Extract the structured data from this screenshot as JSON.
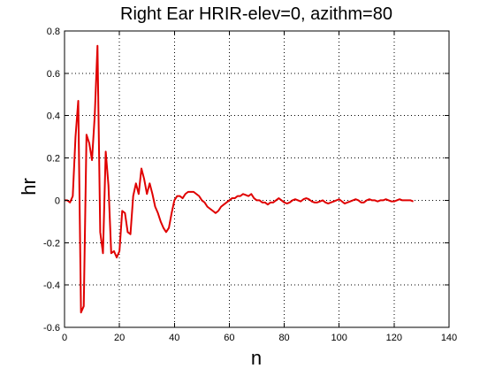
{
  "chart_data": {
    "type": "line",
    "title": "Right Ear HRIR-elev=0, azithm=80",
    "xlabel": "n",
    "ylabel": "hr",
    "xlim": [
      0,
      140
    ],
    "ylim": [
      -0.6,
      0.8
    ],
    "xticks": [
      0,
      20,
      40,
      60,
      80,
      100,
      120,
      140
    ],
    "yticks": [
      -0.6,
      -0.4,
      -0.2,
      0,
      0.2,
      0.4,
      0.6,
      0.8
    ],
    "xtick_labels": [
      "0",
      "20",
      "40",
      "60",
      "80",
      "100",
      "120",
      "140"
    ],
    "ytick_labels": [
      "-0.6",
      "-0.4",
      "-0.2",
      "0",
      "0.2",
      "0.4",
      "0.6",
      "0.8"
    ],
    "grid": true,
    "series": [
      {
        "color": "#e00000",
        "x": [
          0,
          1,
          2,
          3,
          4,
          5,
          6,
          7,
          8,
          9,
          10,
          11,
          12,
          13,
          14,
          15,
          16,
          17,
          18,
          19,
          20,
          21,
          22,
          23,
          24,
          25,
          26,
          27,
          28,
          29,
          30,
          31,
          32,
          33,
          34,
          35,
          36,
          37,
          38,
          39,
          40,
          41,
          42,
          43,
          44,
          45,
          46,
          47,
          48,
          49,
          50,
          51,
          52,
          53,
          54,
          55,
          56,
          57,
          58,
          59,
          60,
          61,
          62,
          63,
          64,
          65,
          66,
          67,
          68,
          69,
          70,
          71,
          72,
          73,
          74,
          75,
          76,
          77,
          78,
          79,
          80,
          81,
          82,
          83,
          84,
          85,
          86,
          87,
          88,
          89,
          90,
          91,
          92,
          93,
          94,
          95,
          96,
          97,
          98,
          99,
          100,
          101,
          102,
          103,
          104,
          105,
          106,
          107,
          108,
          109,
          110,
          111,
          112,
          113,
          114,
          115,
          116,
          117,
          118,
          119,
          120,
          121,
          122,
          123,
          124,
          125,
          126,
          127
        ],
        "y": [
          0.0,
          0.0,
          -0.01,
          0.02,
          0.3,
          0.47,
          -0.53,
          -0.5,
          0.31,
          0.27,
          0.19,
          0.4,
          0.73,
          -0.15,
          -0.25,
          0.23,
          0.07,
          -0.25,
          -0.24,
          -0.27,
          -0.24,
          -0.05,
          -0.06,
          -0.15,
          -0.16,
          0.02,
          0.08,
          0.03,
          0.15,
          0.1,
          0.03,
          0.08,
          0.03,
          -0.03,
          -0.06,
          -0.1,
          -0.13,
          -0.15,
          -0.13,
          -0.06,
          0.0,
          0.02,
          0.02,
          0.01,
          0.03,
          0.04,
          0.04,
          0.04,
          0.03,
          0.02,
          0.0,
          -0.01,
          -0.03,
          -0.04,
          -0.05,
          -0.06,
          -0.05,
          -0.03,
          -0.02,
          -0.01,
          0.0,
          0.01,
          0.01,
          0.02,
          0.02,
          0.03,
          0.025,
          0.02,
          0.03,
          0.01,
          0.0,
          0.0,
          -0.01,
          -0.01,
          -0.02,
          -0.01,
          -0.01,
          0.0,
          0.01,
          0.0,
          -0.01,
          -0.015,
          -0.01,
          0.0,
          0.005,
          0.0,
          -0.005,
          0.005,
          0.01,
          0.005,
          -0.005,
          -0.01,
          -0.01,
          -0.005,
          0.0,
          -0.01,
          -0.015,
          -0.01,
          -0.005,
          0.0,
          0.005,
          -0.005,
          -0.015,
          -0.01,
          -0.005,
          0.0,
          0.005,
          0.0,
          -0.01,
          -0.01,
          0.0,
          0.005,
          0.0,
          0.0,
          -0.005,
          0.0,
          0.0,
          0.005,
          0.0,
          -0.005,
          -0.005,
          0.0,
          0.005,
          0.0,
          0.0,
          0.0,
          0.0,
          -0.005
        ]
      }
    ]
  }
}
